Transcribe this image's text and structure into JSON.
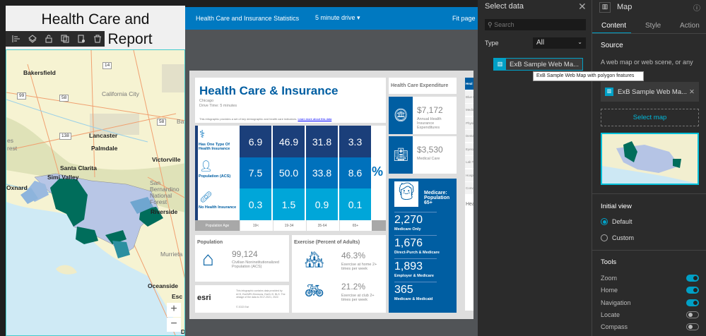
{
  "left": {
    "title": "Health Care and Insurance Report",
    "toolbar": [
      "align-icon",
      "layer-icon",
      "lock-icon",
      "duplicate-icon",
      "settings-icon",
      "delete-icon"
    ],
    "map_labels": [
      "Bakersfield",
      "California City",
      "Lancaster",
      "Palmdale",
      "Victorville",
      "Santa Clarita",
      "Simi Valley",
      "Oxnard",
      "San Bernardino National Forest",
      "Riverside",
      "Murrieta",
      "Oceanside",
      "Esc",
      "14",
      "99",
      "58",
      "58",
      "138",
      "es",
      "rest",
      "Ba",
      "D"
    ],
    "zoom_in": "+",
    "zoom_out": "−"
  },
  "infographic_bar": {
    "title": "Health Care and Insurance Statistics",
    "drive": "5 minute drive",
    "fit": "Fit page"
  },
  "infographic": {
    "title": "Health Care & Insurance",
    "city": "Chicago",
    "drive_time": "Drive Time: 5 minutes",
    "desc": "This infographic provides a set of key demographic and health care indicators.",
    "learn_more": "Learn more about this data",
    "rows": [
      {
        "label": "Has One Type Of Health Insurance",
        "values": [
          "6.9",
          "46.9",
          "31.8",
          "3.3"
        ],
        "color": "#1b3f7a"
      },
      {
        "label": "Population (ACS)",
        "values": [
          "7.5",
          "50.0",
          "33.8",
          "8.6"
        ],
        "color": "#0071bc"
      },
      {
        "label": "No Health Insurance",
        "values": [
          "0.3",
          "1.5",
          "0.9",
          "0.1"
        ],
        "color": "#00a6d9"
      }
    ],
    "percent": "%",
    "pop_age_label": "Population Age",
    "ages": [
      "19<",
      "19-34",
      "35-64",
      "65+"
    ],
    "expenditure": {
      "title": "Health Care Expenditure",
      "items": [
        {
          "value": "$7,172",
          "label": "Annual Health Insurance Expenditures"
        },
        {
          "value": "$3,530",
          "label": "Medical Care"
        }
      ]
    },
    "medicare": {
      "title": "Medicare: Population 65+",
      "items": [
        {
          "value": "2,270",
          "label": "Medicare Only"
        },
        {
          "value": "1,676",
          "label": "Direct-Purch & Medicare"
        },
        {
          "value": "1,893",
          "label": "Employer & Medicare"
        },
        {
          "value": "365",
          "label": "Medicare & Medicaid"
        }
      ]
    },
    "population": {
      "title": "Population",
      "value": "99,124",
      "label": "Civilian Noninstitutionalized Population (ACS)"
    },
    "exercise": {
      "title": "Exercise (Percent of Adults)",
      "items": [
        {
          "value": "46.3%",
          "label": "Exercise at home 2+ times per week"
        },
        {
          "value": "21.2%",
          "label": "Exercise at club 2+ times per week"
        }
      ]
    },
    "esri": {
      "logo": "esri",
      "note": "This infographic contains data provided by ACS, Esri/MRI-Simmons, Esri/U.S. BLS. The vintage of the data is 2017-2021, 2022.",
      "copyright": "© 2022 Esri"
    },
    "side_tabs": [
      "Heal",
      "Blue C",
      "Medica",
      "Physic",
      "Dental",
      "Eyecar",
      "Lab Te",
      "Hospit",
      "Convai"
    ],
    "side_heading": "Hea"
  },
  "select_data": {
    "title": "Select data",
    "search_placeholder": "Search",
    "type_label": "Type",
    "type_value": "All",
    "item": "ExB Sample Web Ma...",
    "tooltip": "ExB Sample Web Map with polygon features"
  },
  "settings": {
    "title": "Map",
    "tabs": [
      "Content",
      "Style",
      "Action"
    ],
    "source_heading": "Source",
    "source_desc": "A web map or web scene, or any combination of the two.",
    "source_item": "ExB Sample Web Ma...",
    "select_map": "Select map",
    "initial_view": "Initial view",
    "views": [
      {
        "label": "Default",
        "selected": true
      },
      {
        "label": "Custom",
        "selected": false
      }
    ],
    "tools_heading": "Tools",
    "tools": [
      {
        "label": "Zoom",
        "on": true
      },
      {
        "label": "Home",
        "on": true
      },
      {
        "label": "Navigation",
        "on": true
      },
      {
        "label": "Locate",
        "on": false
      },
      {
        "label": "Compass",
        "on": false
      }
    ]
  },
  "colors": {
    "accent": "#00a0c6",
    "blue_bar": "#0079c1",
    "dark_blue": "#005ea2",
    "map_green": "#006d5b"
  }
}
